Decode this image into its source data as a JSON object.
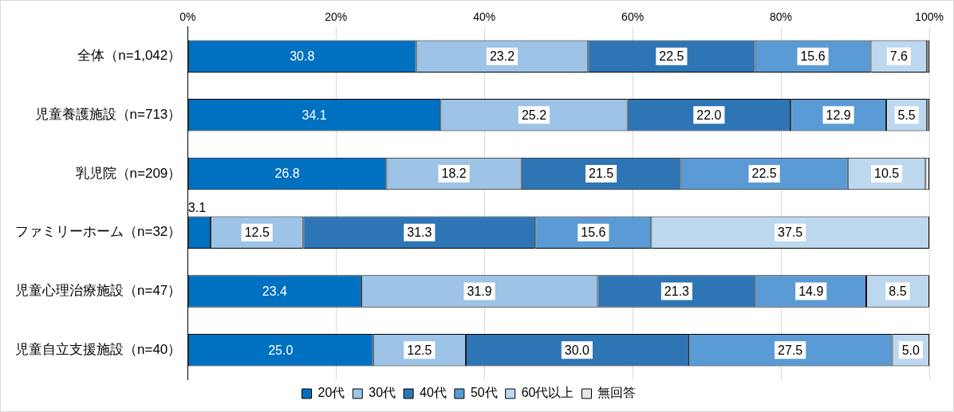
{
  "chart_data": {
    "type": "bar",
    "orientation": "horizontal",
    "stacked": true,
    "categories": [
      "全体（n=1,042）",
      "児童養護施設（n=713）",
      "乳児院（n=209）",
      "ファミリーホーム（n=32）",
      "児童心理治療施設（n=47）",
      "児童自立支援施設（n=40）"
    ],
    "series": [
      {
        "name": "20代",
        "color": "#0070c0",
        "values": [
          30.8,
          34.1,
          26.8,
          3.1,
          23.4,
          25.0
        ],
        "value_labels": [
          "30.8",
          "34.1",
          "26.8",
          "3.1",
          "23.4",
          "25.0"
        ]
      },
      {
        "name": "30代",
        "color": "#9dc3e6",
        "values": [
          23.2,
          25.2,
          18.2,
          12.5,
          31.9,
          12.5
        ],
        "value_labels": [
          "23.2",
          "25.2",
          "18.2",
          "12.5",
          "31.9",
          "12.5"
        ]
      },
      {
        "name": "40代",
        "color": "#2e75b6",
        "values": [
          22.5,
          22.0,
          21.5,
          31.3,
          21.3,
          30.0
        ],
        "value_labels": [
          "22.5",
          "22.0",
          "21.5",
          "31.3",
          "21.3",
          "30.0"
        ]
      },
      {
        "name": "50代",
        "color": "#5b9bd5",
        "values": [
          15.6,
          12.9,
          22.5,
          15.6,
          14.9,
          27.5
        ],
        "value_labels": [
          "15.6",
          "12.9",
          "22.5",
          "15.6",
          "14.9",
          "27.5"
        ]
      },
      {
        "name": "60代以上",
        "color": "#bdd7ee",
        "values": [
          7.6,
          5.5,
          10.5,
          37.5,
          8.5,
          5.0
        ],
        "value_labels": [
          "7.6",
          "5.5",
          "10.5",
          "37.5",
          "8.5",
          "5.0"
        ]
      },
      {
        "name": "無回答",
        "color": "#e7e6e6",
        "values": [
          0.3,
          0.3,
          0.5,
          0,
          0,
          0
        ],
        "value_labels": [
          null,
          null,
          null,
          null,
          null,
          null
        ]
      }
    ],
    "xlim": [
      0,
      100
    ],
    "xticks": [
      {
        "value": 0,
        "label": "0%"
      },
      {
        "value": 20,
        "label": "20%"
      },
      {
        "value": 40,
        "label": "40%"
      },
      {
        "value": 60,
        "label": "60%"
      },
      {
        "value": 80,
        "label": "80%"
      },
      {
        "value": 100,
        "label": "100%"
      }
    ],
    "grid": "x",
    "legend": "bottom"
  }
}
